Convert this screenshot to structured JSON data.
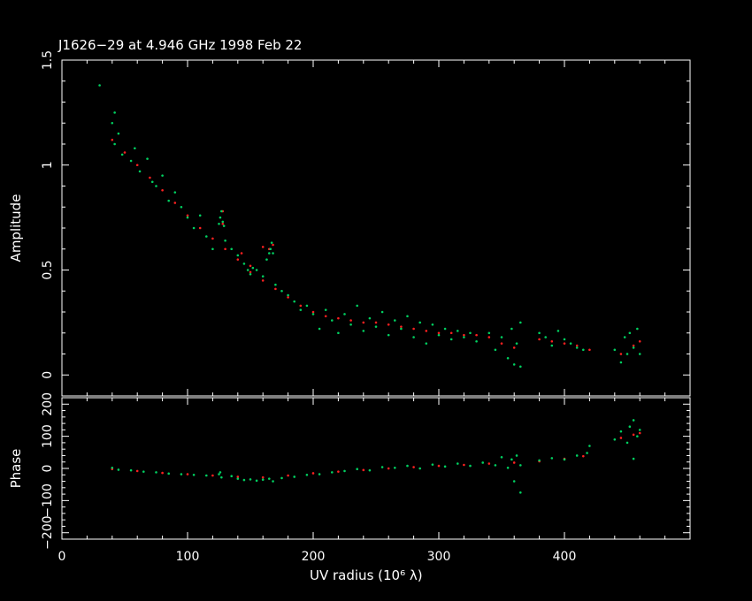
{
  "colors": {
    "background": "#000000",
    "axes": "#ffffff",
    "model": "#ff2020",
    "data": "#00d060"
  },
  "chart_data": [
    {
      "type": "scatter",
      "title": "J1626−29 at 4.946 GHz 1998 Feb 22",
      "xlabel": "UV radius  (10⁶ λ)",
      "ylabel": "Amplitude",
      "xlim": [
        0,
        500
      ],
      "ylim": [
        -0.1,
        1.5
      ],
      "x_ticks": [
        0,
        100,
        200,
        300,
        400
      ],
      "y_ticks": [
        0,
        0.5,
        1,
        1.5
      ],
      "y_tick_labels": [
        "0",
        "0.5",
        "1",
        "1.5"
      ],
      "series": [
        {
          "color": "#ff2020",
          "points": [
            [
              40,
              1.12
            ],
            [
              50,
              1.06
            ],
            [
              60,
              1.0
            ],
            [
              70,
              0.94
            ],
            [
              80,
              0.88
            ],
            [
              90,
              0.82
            ],
            [
              100,
              0.76
            ],
            [
              110,
              0.7
            ],
            [
              120,
              0.65
            ],
            [
              130,
              0.6
            ],
            [
              140,
              0.55
            ],
            [
              150,
              0.49
            ],
            [
              160,
              0.45
            ],
            [
              170,
              0.41
            ],
            [
              180,
              0.37
            ],
            [
              190,
              0.33
            ],
            [
              200,
              0.3
            ],
            [
              210,
              0.28
            ],
            [
              220,
              0.27
            ],
            [
              230,
              0.26
            ],
            [
              240,
              0.25
            ],
            [
              250,
              0.25
            ],
            [
              260,
              0.24
            ],
            [
              270,
              0.23
            ],
            [
              280,
              0.22
            ],
            [
              290,
              0.21
            ],
            [
              300,
              0.2
            ],
            [
              310,
              0.2
            ],
            [
              320,
              0.19
            ],
            [
              330,
              0.19
            ],
            [
              340,
              0.18
            ],
            [
              350,
              0.15
            ],
            [
              360,
              0.13
            ],
            [
              380,
              0.17
            ],
            [
              390,
              0.16
            ],
            [
              400,
              0.15
            ],
            [
              410,
              0.14
            ],
            [
              420,
              0.12
            ],
            [
              445,
              0.1
            ],
            [
              455,
              0.14
            ],
            [
              460,
              0.16
            ],
            [
              128,
              0.78
            ],
            [
              128,
              0.72
            ],
            [
              143,
              0.58
            ],
            [
              150,
              0.52
            ],
            [
              160,
              0.61
            ],
            [
              165,
              0.6
            ],
            [
              168,
              0.62
            ]
          ]
        },
        {
          "color": "#00d060",
          "points": [
            [
              40,
              1.2
            ],
            [
              42,
              1.1
            ],
            [
              45,
              1.15
            ],
            [
              48,
              1.05
            ],
            [
              55,
              1.02
            ],
            [
              58,
              1.08
            ],
            [
              62,
              0.97
            ],
            [
              68,
              1.03
            ],
            [
              72,
              0.92
            ],
            [
              75,
              0.9
            ],
            [
              80,
              0.95
            ],
            [
              85,
              0.83
            ],
            [
              90,
              0.87
            ],
            [
              95,
              0.8
            ],
            [
              100,
              0.75
            ],
            [
              105,
              0.7
            ],
            [
              110,
              0.76
            ],
            [
              115,
              0.66
            ],
            [
              120,
              0.6
            ],
            [
              125,
              0.72
            ],
            [
              126,
              0.75
            ],
            [
              127,
              0.78
            ],
            [
              128,
              0.73
            ],
            [
              129,
              0.71
            ],
            [
              130,
              0.64
            ],
            [
              135,
              0.6
            ],
            [
              140,
              0.57
            ],
            [
              145,
              0.53
            ],
            [
              148,
              0.5
            ],
            [
              150,
              0.48
            ],
            [
              152,
              0.51
            ],
            [
              155,
              0.5
            ],
            [
              160,
              0.47
            ],
            [
              163,
              0.55
            ],
            [
              165,
              0.58
            ],
            [
              166,
              0.6
            ],
            [
              167,
              0.63
            ],
            [
              168,
              0.58
            ],
            [
              170,
              0.43
            ],
            [
              175,
              0.4
            ],
            [
              180,
              0.38
            ],
            [
              185,
              0.35
            ],
            [
              190,
              0.31
            ],
            [
              195,
              0.33
            ],
            [
              200,
              0.29
            ],
            [
              205,
              0.22
            ],
            [
              210,
              0.31
            ],
            [
              215,
              0.26
            ],
            [
              220,
              0.2
            ],
            [
              225,
              0.29
            ],
            [
              230,
              0.24
            ],
            [
              235,
              0.33
            ],
            [
              240,
              0.21
            ],
            [
              245,
              0.27
            ],
            [
              250,
              0.23
            ],
            [
              255,
              0.3
            ],
            [
              260,
              0.19
            ],
            [
              265,
              0.26
            ],
            [
              270,
              0.22
            ],
            [
              275,
              0.28
            ],
            [
              280,
              0.18
            ],
            [
              285,
              0.25
            ],
            [
              290,
              0.15
            ],
            [
              295,
              0.24
            ],
            [
              300,
              0.19
            ],
            [
              305,
              0.22
            ],
            [
              310,
              0.17
            ],
            [
              315,
              0.21
            ],
            [
              320,
              0.18
            ],
            [
              325,
              0.2
            ],
            [
              330,
              0.16
            ],
            [
              340,
              0.2
            ],
            [
              345,
              0.12
            ],
            [
              350,
              0.18
            ],
            [
              355,
              0.08
            ],
            [
              358,
              0.22
            ],
            [
              360,
              0.05
            ],
            [
              362,
              0.15
            ],
            [
              365,
              0.25
            ],
            [
              365,
              0.04
            ],
            [
              380,
              0.2
            ],
            [
              385,
              0.18
            ],
            [
              390,
              0.14
            ],
            [
              395,
              0.21
            ],
            [
              400,
              0.17
            ],
            [
              405,
              0.15
            ],
            [
              410,
              0.13
            ],
            [
              415,
              0.12
            ],
            [
              440,
              0.12
            ],
            [
              445,
              0.06
            ],
            [
              448,
              0.18
            ],
            [
              450,
              0.1
            ],
            [
              452,
              0.2
            ],
            [
              455,
              0.13
            ],
            [
              458,
              0.22
            ],
            [
              460,
              0.1
            ],
            [
              30,
              1.38
            ],
            [
              42,
              1.25
            ]
          ]
        }
      ]
    },
    {
      "type": "scatter",
      "xlabel": "UV radius  (10⁶ λ)",
      "ylabel": "Phase",
      "xlim": [
        0,
        500
      ],
      "ylim": [
        -220,
        220
      ],
      "x_ticks": [
        0,
        100,
        200,
        300,
        400
      ],
      "x_tick_labels": [
        "0",
        "100",
        "200",
        "300",
        "400"
      ],
      "y_ticks": [
        -200,
        -100,
        0,
        100,
        200
      ],
      "y_tick_labels": [
        "−200",
        "−100",
        "0",
        "100",
        "200"
      ],
      "series": [
        {
          "color": "#ff2020",
          "points": [
            [
              40,
              -2
            ],
            [
              60,
              -8
            ],
            [
              80,
              -14
            ],
            [
              100,
              -18
            ],
            [
              120,
              -22
            ],
            [
              140,
              -26
            ],
            [
              160,
              -28
            ],
            [
              180,
              -22
            ],
            [
              200,
              -15
            ],
            [
              220,
              -10
            ],
            [
              240,
              -5
            ],
            [
              260,
              0
            ],
            [
              280,
              4
            ],
            [
              300,
              8
            ],
            [
              320,
              11
            ],
            [
              340,
              15
            ],
            [
              360,
              18
            ],
            [
              380,
              22
            ],
            [
              400,
              30
            ],
            [
              415,
              38
            ],
            [
              445,
              95
            ],
            [
              455,
              105
            ],
            [
              460,
              110
            ]
          ]
        },
        {
          "color": "#00d060",
          "points": [
            [
              40,
              2
            ],
            [
              45,
              -4
            ],
            [
              55,
              -6
            ],
            [
              65,
              -10
            ],
            [
              75,
              -12
            ],
            [
              85,
              -16
            ],
            [
              95,
              -18
            ],
            [
              105,
              -20
            ],
            [
              115,
              -22
            ],
            [
              125,
              -18
            ],
            [
              126,
              -12
            ],
            [
              127,
              -28
            ],
            [
              135,
              -24
            ],
            [
              140,
              -32
            ],
            [
              145,
              -36
            ],
            [
              150,
              -34
            ],
            [
              155,
              -38
            ],
            [
              160,
              -35
            ],
            [
              165,
              -32
            ],
            [
              168,
              -40
            ],
            [
              175,
              -30
            ],
            [
              185,
              -26
            ],
            [
              195,
              -20
            ],
            [
              205,
              -18
            ],
            [
              215,
              -12
            ],
            [
              225,
              -8
            ],
            [
              235,
              -2
            ],
            [
              245,
              -6
            ],
            [
              255,
              4
            ],
            [
              265,
              2
            ],
            [
              275,
              8
            ],
            [
              285,
              0
            ],
            [
              295,
              12
            ],
            [
              305,
              6
            ],
            [
              315,
              15
            ],
            [
              325,
              8
            ],
            [
              335,
              18
            ],
            [
              345,
              10
            ],
            [
              350,
              35
            ],
            [
              355,
              2
            ],
            [
              358,
              28
            ],
            [
              360,
              -40
            ],
            [
              362,
              40
            ],
            [
              365,
              -75
            ],
            [
              365,
              10
            ],
            [
              380,
              25
            ],
            [
              390,
              32
            ],
            [
              400,
              28
            ],
            [
              410,
              40
            ],
            [
              418,
              48
            ],
            [
              420,
              70
            ],
            [
              440,
              90
            ],
            [
              445,
              115
            ],
            [
              450,
              80
            ],
            [
              452,
              130
            ],
            [
              455,
              150
            ],
            [
              458,
              100
            ],
            [
              460,
              120
            ],
            [
              455,
              30
            ]
          ]
        }
      ]
    }
  ]
}
